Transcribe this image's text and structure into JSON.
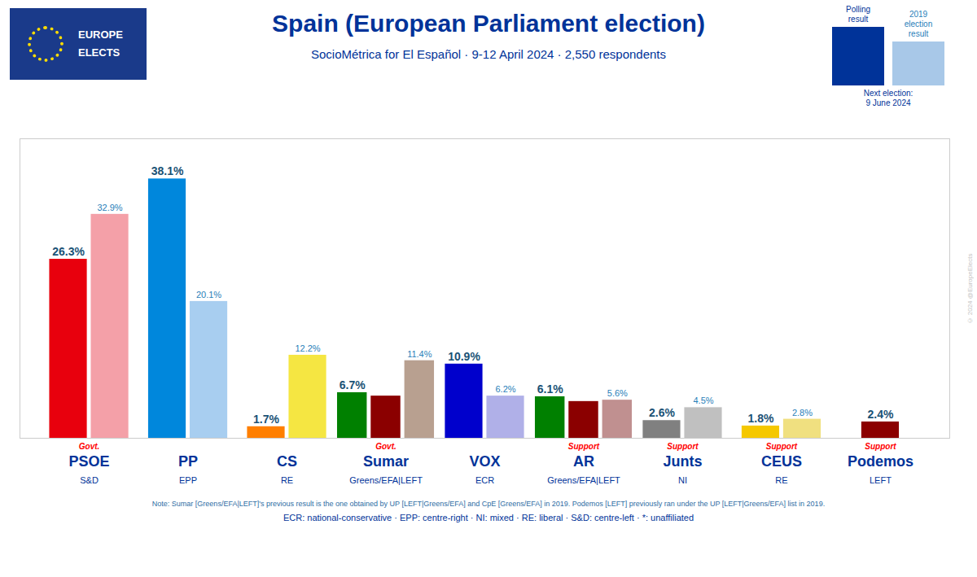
{
  "chart_data": {
    "type": "bar",
    "title": "Spain (European Parliament election)",
    "subtitle": "SocioMétrica for El Español · 9-12 April 2024 · 2,550 respondents",
    "categories": [
      "PSOE",
      "PP",
      "CS",
      "Sumar",
      "VOX",
      "AR",
      "Junts",
      "CEUS",
      "Podemos"
    ],
    "group_labels": [
      "S&D",
      "EPP",
      "RE",
      "Greens/EFA|LEFT",
      "ECR",
      "Greens/EFA|LEFT",
      "NI",
      "RE",
      "LEFT"
    ],
    "status_labels": [
      "Govt.",
      null,
      null,
      "Govt.",
      null,
      "Support",
      "Support",
      "Support",
      "Support"
    ],
    "series": [
      {
        "name": "Polling\nresult",
        "color": "#003399",
        "colors": [
          "#e8000d",
          "#0087dc",
          "#ff7f00",
          "#008000",
          "#0000cc",
          "#008000",
          "#808080",
          "#f5c800",
          "#8b0000"
        ],
        "values": [
          26.3,
          38.1,
          1.7,
          6.7,
          10.9,
          6.1,
          2.6,
          1.8,
          2.4
        ],
        "value_labels": [
          "26.3%",
          "38.1%",
          "1.7%",
          "6.7%",
          "10.9%",
          "6.1%",
          "2.6%",
          "1.8%",
          "2.4%"
        ],
        "data_labels": true
      },
      {
        "colors": [
          null,
          null,
          null,
          "#8b0000",
          null,
          "#8b0000",
          null,
          null,
          null
        ],
        "values": [
          null,
          null,
          null,
          6.2,
          null,
          5.4,
          null,
          null,
          null
        ],
        "data_labels": false
      },
      {
        "name": "2019\nelection\nresult",
        "color": "#a8c8e8",
        "colors": [
          "#f4a0a8",
          "#a8cef0",
          "#f5e642",
          "#b8a090",
          "#b0b0e8",
          "#c09090",
          "#c0c0c0",
          "#f0e080",
          null
        ],
        "values": [
          32.9,
          20.1,
          12.2,
          11.4,
          6.2,
          5.6,
          4.5,
          2.8,
          null
        ],
        "value_labels": [
          "32.9%",
          "20.1%",
          "12.2%",
          "11.4%",
          "6.2%",
          "5.6%",
          "4.5%",
          "2.8%",
          null
        ],
        "data_labels": true
      }
    ],
    "ylim": [
      0,
      44
    ],
    "yticks": [],
    "tick_labels": "x",
    "grid": false,
    "legend": "upper right",
    "note": "Note: Sumar [Greens/EFA|LEFT]'s previous result is the one obtained by UP [LEFT|Greens/EFA] and CpE [Greens/EFA] in 2019. Podemos [LEFT] previously ran under the UP [LEFT|Greens/EFA] list in 2019.",
    "footer": "ECR: national-conservative · EPP: centre-right · NI: mixed · RE: liberal · S&D: centre-left · *: unaffiliated",
    "next_election": "Next election:\n9 June 2024",
    "logo_text": [
      "EUROPE",
      "ELECTS"
    ],
    "watermark": "© 2024 @EuropeElects"
  }
}
